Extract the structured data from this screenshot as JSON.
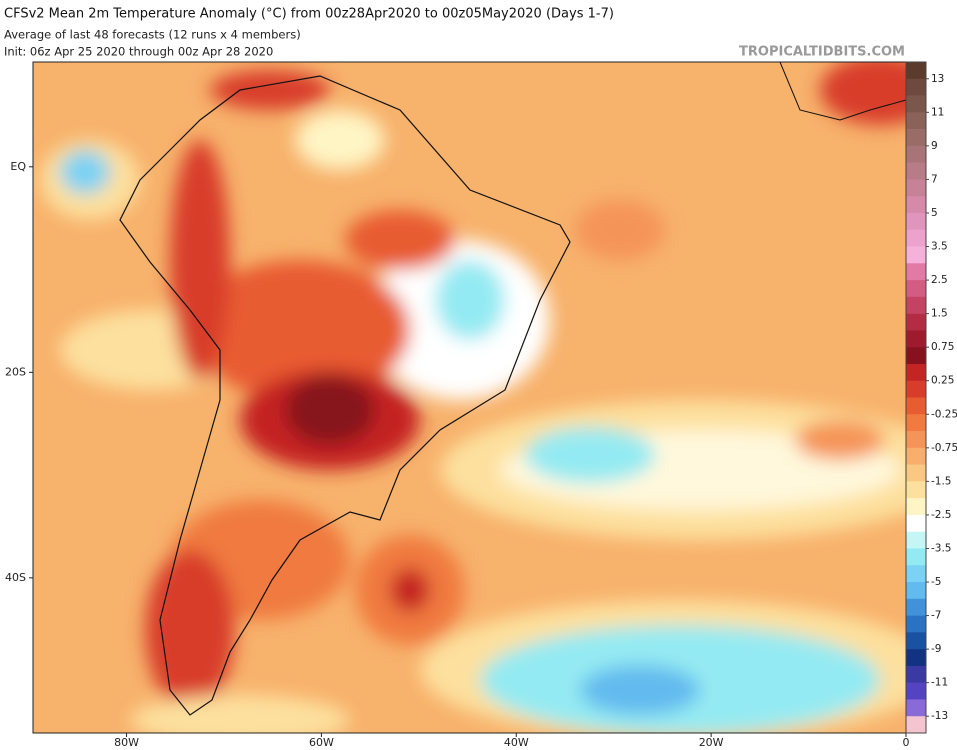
{
  "map": {
    "title": "CFSv2 Mean 2m Temperature Anomaly (°C) from 00z28Apr2020 to 00z05May2020 (Days 1-7)",
    "subtitle": "Average of last 48 forecasts (12 runs x 4 members)",
    "init": "Init: 06z Apr 25 2020 through 00z Apr 28 2020",
    "credit": "TROPICALTIDBITS.COM",
    "xlim": [
      -89.6,
      0
    ],
    "ylim": [
      10.2,
      -55.1
    ],
    "xticks": [
      {
        "value": -80,
        "label": "80W"
      },
      {
        "value": -60,
        "label": "60W"
      },
      {
        "value": -40,
        "label": "40W"
      },
      {
        "value": -20,
        "label": "20W"
      },
      0
    ],
    "yticks": [
      {
        "value": 0,
        "label": "EQ"
      },
      {
        "value": -20,
        "label": "20S"
      },
      {
        "value": -40,
        "label": "40S"
      }
    ],
    "colorbar": {
      "labels": [
        13,
        11,
        9,
        7,
        5,
        3.5,
        2.5,
        1.5,
        0.75,
        0.25,
        -0.25,
        -0.75,
        -1.5,
        -2.5,
        -3.5,
        -5,
        -7,
        -9,
        -11,
        -13
      ],
      "colors": [
        "#5b3b2c",
        "#6d4a3d",
        "#7b564a",
        "#8a6258",
        "#9a6c68",
        "#a97478",
        "#b87c88",
        "#c68296",
        "#d48aa8",
        "#e096bc",
        "#eca2cc",
        "#f4b2da",
        "#e27aa6",
        "#d25c82",
        "#c44362",
        "#b42c44",
        "#9e1a2c",
        "#86121e",
        "#c42424",
        "#d83c2a",
        "#e85c32",
        "#f07a40",
        "#f59458",
        "#f8ae6c",
        "#fbc884",
        "#fde09e",
        "#fff4c4",
        "#ffffff",
        "#c4f6f6",
        "#94eaf2",
        "#7cd2f4",
        "#62baee",
        "#4292da",
        "#2a72c2",
        "#1a52a2",
        "#123282",
        "#3a3aa2",
        "#5444c2",
        "#8a6ad6",
        "#f4c4d0"
      ]
    }
  }
}
